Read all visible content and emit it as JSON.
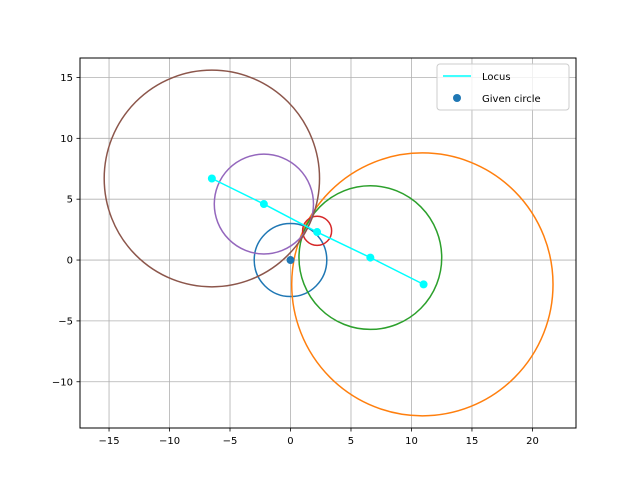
{
  "chart_data": {
    "type": "scatter",
    "title": "",
    "xlabel": "",
    "ylabel": "",
    "xlim": [
      -17.4,
      23.6
    ],
    "ylim": [
      -13.8,
      16.6
    ],
    "xticks": [
      -15,
      -10,
      -5,
      0,
      5,
      10,
      15,
      20
    ],
    "yticks": [
      -10,
      -5,
      0,
      5,
      10,
      15
    ],
    "xtick_labels": [
      "−15",
      "−10",
      "−5",
      "0",
      "5",
      "10",
      "15",
      "20"
    ],
    "ytick_labels": [
      "−10",
      "−5",
      "0",
      "5",
      "10",
      "15"
    ],
    "grid": true,
    "legend_position": "top-right",
    "locus": {
      "name": "Locus",
      "color": "#00ffff",
      "x": [
        -6.5,
        -2.2,
        2.2,
        6.6,
        11.0
      ],
      "y": [
        6.7,
        4.6,
        2.3,
        0.2,
        -2.0
      ]
    },
    "given_circle": {
      "name": "Given circle",
      "color": "#1f77b4",
      "center": [
        0,
        0
      ],
      "radius": 3.0
    },
    "circles": [
      {
        "color": "#1f77b4",
        "cx": 0.0,
        "cy": 0.0,
        "r": 3.0
      },
      {
        "color": "#ff7f0e",
        "cx": 10.9,
        "cy": -2.0,
        "r": 10.8
      },
      {
        "color": "#2ca02c",
        "cx": 6.6,
        "cy": 0.2,
        "r": 5.9
      },
      {
        "color": "#d62728",
        "cx": 2.2,
        "cy": 2.4,
        "r": 1.2
      },
      {
        "color": "#9467bd",
        "cx": -2.2,
        "cy": 4.6,
        "r": 4.1
      },
      {
        "color": "#8c564b",
        "cx": -6.5,
        "cy": 6.7,
        "r": 8.9
      }
    ]
  }
}
